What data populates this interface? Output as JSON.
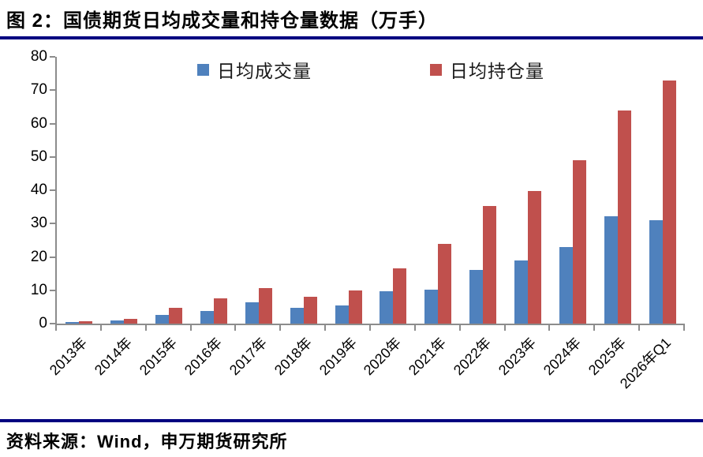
{
  "header": {
    "title": "图 2：国债期货日均成交量和持仓量数据（万手）"
  },
  "footer": {
    "source": "资料来源：Wind，申万期货研究所"
  },
  "colors": {
    "volume_blue": "#4F81BD",
    "open_interest_red": "#C0504D",
    "divider_navy": "#000080",
    "axis_gray": "#8C8C8C"
  },
  "chart_data": {
    "type": "bar",
    "title": "图 2：国债期货日均成交量和持仓量数据（万手）",
    "xlabel": "",
    "ylabel": "",
    "ylim": [
      0,
      80
    ],
    "yticks": [
      0,
      10,
      20,
      30,
      40,
      50,
      60,
      70,
      80
    ],
    "grid": false,
    "legend_position": "top-center",
    "categories": [
      "2013年",
      "2014年",
      "2015年",
      "2016年",
      "2017年",
      "2018年",
      "2019年",
      "2020年",
      "2021年",
      "2022年",
      "2023年",
      "2024年",
      "2025年",
      "2026年Q1"
    ],
    "series": [
      {
        "name": "日均成交量",
        "color": "#4F81BD",
        "values": [
          0.5,
          0.9,
          2.7,
          3.8,
          6.3,
          4.8,
          5.5,
          9.8,
          10.2,
          16.2,
          19.0,
          23.0,
          32.3,
          31.0
        ]
      },
      {
        "name": "日均持仓量",
        "color": "#C0504D",
        "values": [
          0.6,
          1.4,
          4.8,
          7.5,
          10.6,
          8.0,
          10.0,
          16.5,
          24.0,
          35.3,
          39.8,
          49.0,
          63.8,
          72.8
        ]
      }
    ]
  }
}
